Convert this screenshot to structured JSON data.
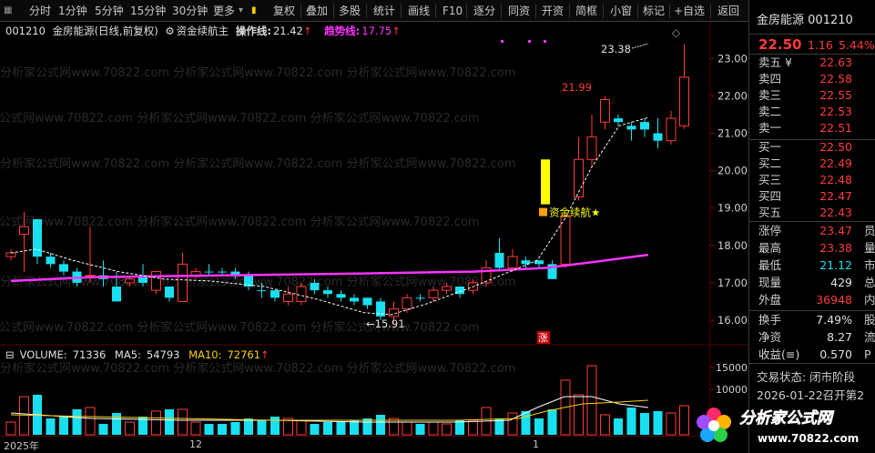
{
  "toolbar": {
    "left": [
      "分时",
      "1分钟",
      "5分钟",
      "15分钟",
      "30分钟",
      "更多"
    ],
    "right": [
      "复权",
      "叠加",
      "多股",
      "统计",
      "画线",
      "F10",
      "逐分",
      "同资",
      "开资",
      "简框",
      "小窗",
      "标记",
      "+自选",
      "返回"
    ]
  },
  "chart": {
    "code": "001210",
    "name": "金房能源",
    "mode": "(日线,前复权)",
    "indicator": "资金续航主",
    "op_label": "操作线:",
    "op_value": "21.42",
    "trend_label": "趋势线:",
    "trend_value": "17.75",
    "up_arrow": "↑",
    "watermark": "分析家公式网www.70822.com",
    "y_axis": [
      "23.00",
      "22.00",
      "21.00",
      "20.00",
      "19.00",
      "18.00",
      "17.00",
      "16.00"
    ],
    "high_label": "23.38",
    "label_2199": "21.99",
    "low_label": "←15.91",
    "signal_label": "资金续航★",
    "zhang_label": "涨",
    "diamond": "◇"
  },
  "volume": {
    "label": "VOLUME:",
    "value": "71336",
    "ma5_label": "MA5:",
    "ma5_value": "54793",
    "ma10_label": "MA10:",
    "ma10_value": "72761",
    "y_axis": [
      "15000",
      "10000"
    ]
  },
  "dates": [
    "2025年",
    "12",
    "1"
  ],
  "quote": {
    "name": "金房能源",
    "code": "001210",
    "price": "22.50",
    "change": "1.16",
    "pct": "5.44%",
    "sell": [
      {
        "label": "卖五",
        "suffix": "¥",
        "price": "22.63"
      },
      {
        "label": "卖四",
        "suffix": "",
        "price": "22.58"
      },
      {
        "label": "卖三",
        "suffix": "",
        "price": "22.55"
      },
      {
        "label": "卖二",
        "suffix": "",
        "price": "22.53"
      },
      {
        "label": "卖一",
        "suffix": "",
        "price": "22.51"
      }
    ],
    "buy": [
      {
        "label": "买一",
        "price": "22.50"
      },
      {
        "label": "买二",
        "price": "22.49"
      },
      {
        "label": "买三",
        "price": "22.48"
      },
      {
        "label": "买四",
        "price": "22.47"
      },
      {
        "label": "买五",
        "price": "22.43"
      }
    ],
    "stats": [
      {
        "label": "涨停",
        "value": "23.47",
        "color": "#ff3b3b",
        "extra": "员"
      },
      {
        "label": "最高",
        "value": "23.38",
        "color": "#ff3b3b",
        "extra": "量"
      },
      {
        "label": "最低",
        "value": "21.12",
        "color": "#18e0f0",
        "extra": "市"
      },
      {
        "label": "现量",
        "value": "429",
        "color": "#e0e0e0",
        "extra": "总"
      },
      {
        "label": "外盘",
        "value": "36948",
        "color": "#ff3b3b",
        "extra": "内"
      }
    ],
    "stats2": [
      {
        "label": "换手",
        "value": "7.49%",
        "color": "#e0e0e0",
        "extra": "股"
      },
      {
        "label": "净资",
        "value": "8.27",
        "color": "#e0e0e0",
        "extra": "流"
      },
      {
        "label": "收益(≡)",
        "value": "0.570",
        "color": "#e0e0e0",
        "extra": "P"
      }
    ],
    "state": "交易状态: 闭市阶段",
    "notice": "2026-01-22召开第2"
  },
  "logo": {
    "text": "分析家公式网",
    "url": "www.70822.com"
  }
}
